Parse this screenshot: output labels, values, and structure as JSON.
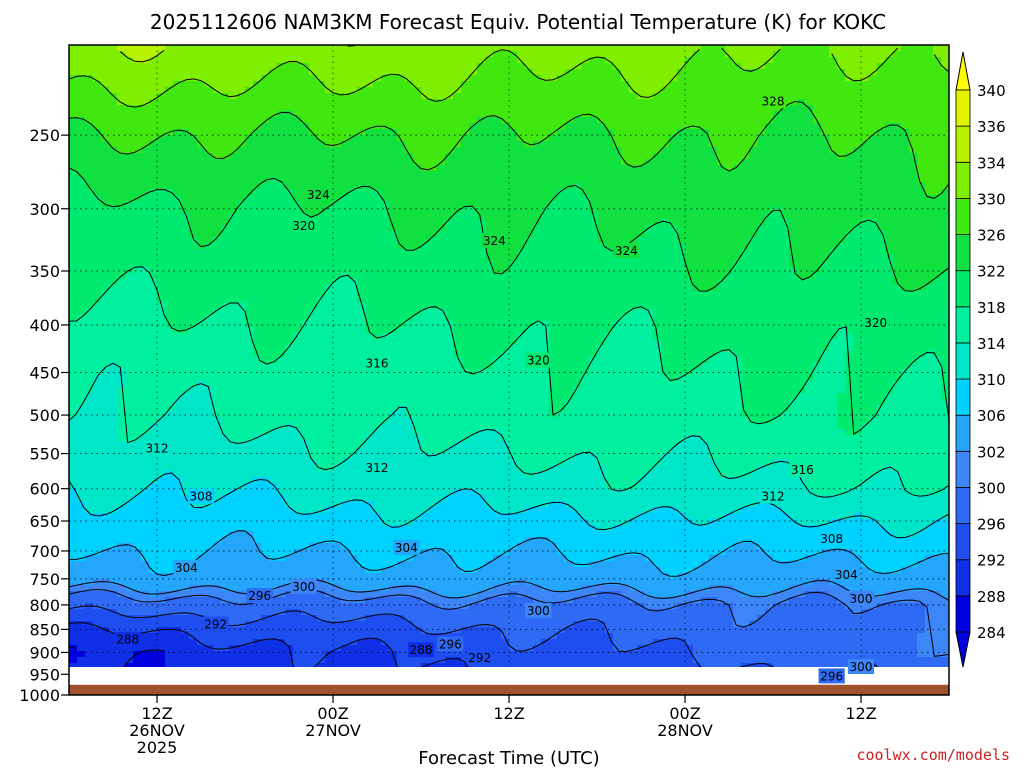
{
  "title": "2025112606 NAM3KM Forecast Equiv. Potential Temperature (K) for KOKC",
  "credit": "coolwx.com/models",
  "chart_data": {
    "type": "heatmap",
    "title": "2025112606 NAM3KM Forecast Equiv. Potential Temperature (K) for KOKC",
    "xlabel": "Forecast Time (UTC)",
    "ylabel": "",
    "x_range_hours": [
      6,
      66
    ],
    "y_range_hPa": [
      1000,
      200
    ],
    "y_scale": "log-pressure",
    "x_ticks": [
      {
        "hour": 12,
        "lines": [
          "12Z",
          "26NOV",
          "2025"
        ]
      },
      {
        "hour": 24,
        "lines": [
          "00Z",
          "27NOV"
        ]
      },
      {
        "hour": 36,
        "lines": [
          "12Z"
        ]
      },
      {
        "hour": 48,
        "lines": [
          "00Z",
          "28NOV"
        ]
      },
      {
        "hour": 60,
        "lines": [
          "12Z"
        ]
      }
    ],
    "y_ticks": [
      250,
      300,
      350,
      400,
      450,
      500,
      550,
      600,
      650,
      700,
      750,
      800,
      850,
      900,
      950,
      1000
    ],
    "grid": "dotted",
    "colorbar": {
      "levels": [
        284,
        288,
        292,
        296,
        300,
        302,
        306,
        310,
        314,
        318,
        322,
        326,
        330,
        334,
        336,
        340
      ],
      "colors": [
        "#0000e0",
        "#1030e8",
        "#1e4ef0",
        "#2e6af4",
        "#3c86f8",
        "#23a6fb",
        "#00d2ff",
        "#00e6c8",
        "#00f0a0",
        "#00ea70",
        "#10e040",
        "#40e810",
        "#80ee00",
        "#b8f200",
        "#e0f400",
        "#ffff00"
      ]
    },
    "ground": {
      "below_hPa": 975,
      "color": "#a0522d"
    },
    "theta_e_profile_start": [
      {
        "p": 975,
        "v": 288
      },
      {
        "p": 900,
        "v": 288
      },
      {
        "p": 850,
        "v": 292
      },
      {
        "p": 800,
        "v": 298
      },
      {
        "p": 750,
        "v": 304
      },
      {
        "p": 700,
        "v": 306
      },
      {
        "p": 650,
        "v": 308
      },
      {
        "p": 600,
        "v": 310
      },
      {
        "p": 550,
        "v": 312
      },
      {
        "p": 500,
        "v": 314
      },
      {
        "p": 450,
        "v": 315
      },
      {
        "p": 400,
        "v": 317
      },
      {
        "p": 350,
        "v": 319
      },
      {
        "p": 300,
        "v": 321
      },
      {
        "p": 250,
        "v": 326
      },
      {
        "p": 200,
        "v": 334
      }
    ],
    "theta_e_profile_end": [
      {
        "p": 975,
        "v": 296
      },
      {
        "p": 900,
        "v": 300
      },
      {
        "p": 850,
        "v": 300
      },
      {
        "p": 800,
        "v": 300
      },
      {
        "p": 750,
        "v": 304
      },
      {
        "p": 700,
        "v": 307
      },
      {
        "p": 650,
        "v": 310
      },
      {
        "p": 600,
        "v": 314
      },
      {
        "p": 550,
        "v": 316
      },
      {
        "p": 500,
        "v": 318
      },
      {
        "p": 450,
        "v": 319
      },
      {
        "p": 400,
        "v": 320
      },
      {
        "p": 350,
        "v": 322
      },
      {
        "p": 300,
        "v": 324
      },
      {
        "p": 250,
        "v": 326
      },
      {
        "p": 200,
        "v": 330
      }
    ],
    "contour_labels": [
      {
        "text": "328",
        "hour": 54,
        "p": 230
      },
      {
        "text": "324",
        "hour": 23,
        "p": 290
      },
      {
        "text": "324",
        "hour": 35,
        "p": 325
      },
      {
        "text": "324",
        "hour": 44,
        "p": 333
      },
      {
        "text": "320",
        "hour": 22,
        "p": 313
      },
      {
        "text": "320",
        "hour": 38,
        "p": 437
      },
      {
        "text": "320",
        "hour": 61,
        "p": 398
      },
      {
        "text": "316",
        "hour": 27,
        "p": 440
      },
      {
        "text": "316",
        "hour": 56,
        "p": 573
      },
      {
        "text": "312",
        "hour": 12,
        "p": 543
      },
      {
        "text": "312",
        "hour": 27,
        "p": 570
      },
      {
        "text": "312",
        "hour": 54,
        "p": 612
      },
      {
        "text": "308",
        "hour": 15,
        "p": 612
      },
      {
        "text": "308",
        "hour": 58,
        "p": 680
      },
      {
        "text": "304",
        "hour": 14,
        "p": 730
      },
      {
        "text": "304",
        "hour": 29,
        "p": 695
      },
      {
        "text": "304",
        "hour": 59,
        "p": 743
      },
      {
        "text": "300",
        "hour": 22,
        "p": 765
      },
      {
        "text": "300",
        "hour": 38,
        "p": 812
      },
      {
        "text": "300",
        "hour": 60,
        "p": 788
      },
      {
        "text": "300",
        "hour": 60,
        "p": 933
      },
      {
        "text": "296",
        "hour": 19,
        "p": 783
      },
      {
        "text": "296",
        "hour": 32,
        "p": 882
      },
      {
        "text": "296",
        "hour": 58,
        "p": 955
      },
      {
        "text": "292",
        "hour": 16,
        "p": 840
      },
      {
        "text": "292",
        "hour": 34,
        "p": 912
      },
      {
        "text": "288",
        "hour": 10,
        "p": 872
      },
      {
        "text": "288",
        "hour": 30,
        "p": 895
      }
    ]
  }
}
